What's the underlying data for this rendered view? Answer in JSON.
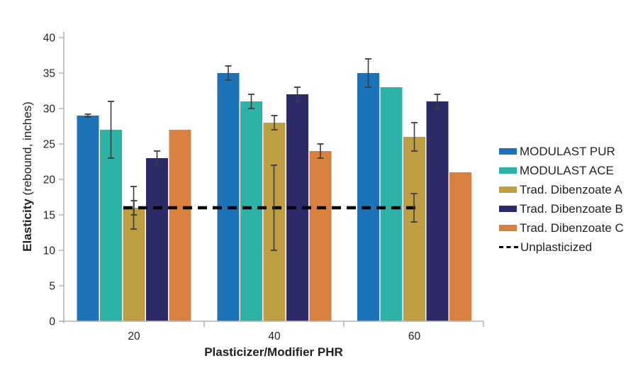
{
  "chart_data": {
    "type": "bar",
    "title": "",
    "xlabel": "Plasticizer/Modifier PHR",
    "ylabel_bold": "Elasticity",
    "ylabel_rest": " (rebound, inches)",
    "categories": [
      "20",
      "40",
      "60"
    ],
    "yticks": [
      0,
      5,
      10,
      15,
      20,
      25,
      30,
      35,
      40
    ],
    "ylim": [
      0,
      40
    ],
    "grid": false,
    "legend_position": "right",
    "axis_color": "#b3b3b3",
    "error_bar_color": "#3c3c3c",
    "text_color": "#231f20",
    "series": [
      {
        "name": "MODULAST PUR",
        "color": "#1e72b8",
        "values": [
          29,
          35,
          35
        ],
        "errors": [
          0.2,
          1,
          2
        ]
      },
      {
        "name": "MODULAST ACE",
        "color": "#2fb2a6",
        "values": [
          27,
          31,
          33
        ],
        "errors": [
          4,
          1,
          0
        ]
      },
      {
        "name": "Trad. Dibenzoate A",
        "color": "#bf9e43",
        "values": [
          16,
          28,
          26
        ],
        "errors": [
          1,
          1,
          2
        ]
      },
      {
        "name": "Trad. Dibenzoate B",
        "color": "#2d2a68",
        "values": [
          23,
          32,
          31
        ],
        "errors": [
          1,
          1,
          1
        ]
      },
      {
        "name": "Trad. Dibenzoate C",
        "color": "#d8803f",
        "values": [
          27,
          24,
          21
        ],
        "errors": [
          0,
          1,
          0
        ]
      }
    ],
    "reference_line": {
      "name": "Unplasticized",
      "value": 16,
      "style": "dashed",
      "color": "#000000",
      "errors": [
        3,
        6,
        2
      ]
    }
  }
}
